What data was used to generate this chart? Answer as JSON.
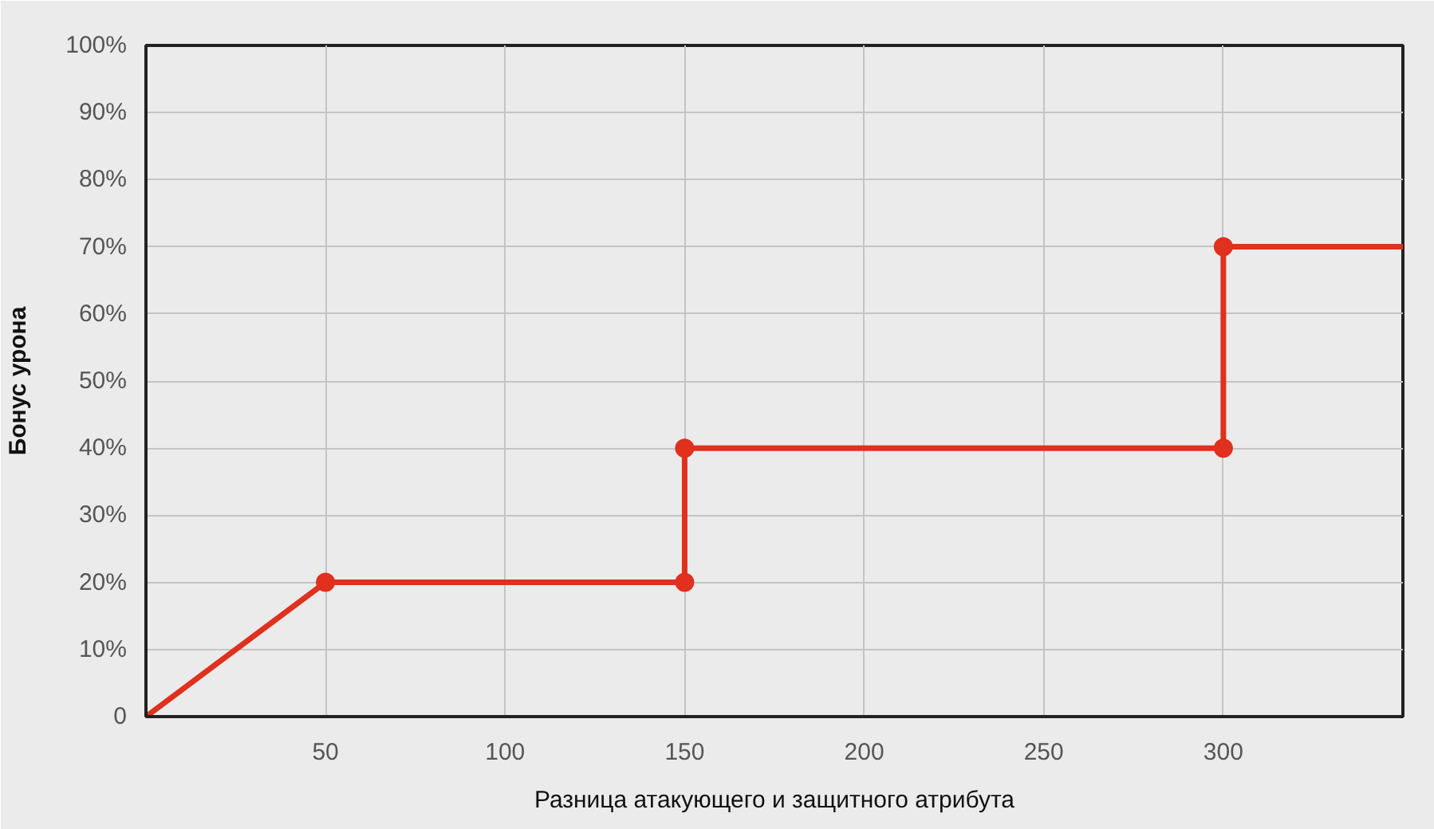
{
  "chart_data": {
    "type": "line",
    "xlabel": "Разница атакующего и защитного атрибута",
    "ylabel": "Бонус урона",
    "xlim": [
      0,
      350
    ],
    "ylim": [
      0,
      100
    ],
    "xticks": [
      50,
      100,
      150,
      200,
      250,
      300
    ],
    "yticks": [
      {
        "value": 0,
        "label": "0"
      },
      {
        "value": 10,
        "label": "10%"
      },
      {
        "value": 20,
        "label": "20%"
      },
      {
        "value": 30,
        "label": "30%"
      },
      {
        "value": 40,
        "label": "40%"
      },
      {
        "value": 50,
        "label": "50%"
      },
      {
        "value": 60,
        "label": "60%"
      },
      {
        "value": 70,
        "label": "70%"
      },
      {
        "value": 80,
        "label": "80%"
      },
      {
        "value": 90,
        "label": "90%"
      },
      {
        "value": 100,
        "label": "100%"
      }
    ],
    "grid": true,
    "series": [
      {
        "color": "#e0301e",
        "marker": "none",
        "line_style": "solid",
        "x": [
          0,
          50,
          150,
          150,
          300,
          300,
          350
        ],
        "values": [
          0,
          20,
          20,
          40,
          40,
          70,
          70
        ]
      },
      {
        "type": "scatter",
        "color": "#e0301e",
        "marker": "circle",
        "x": [
          50,
          150,
          150,
          300,
          300
        ],
        "values": [
          20,
          20,
          40,
          40,
          70
        ]
      }
    ]
  }
}
